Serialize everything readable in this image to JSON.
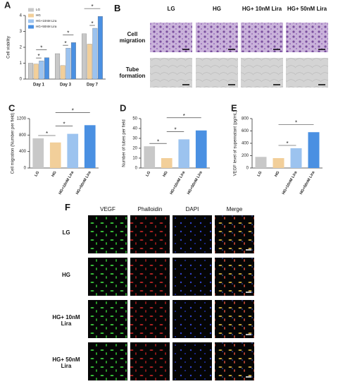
{
  "chart_data": [
    {
      "type": "bar",
      "panel": "A",
      "ylabel": "Cell viability",
      "categories": [
        "Day 1",
        "Day 3",
        "Day 7"
      ],
      "series": [
        {
          "name": "LG",
          "color": "#c8c8c8",
          "values": [
            1.0,
            1.6,
            2.85
          ]
        },
        {
          "name": "HG",
          "color": "#f2cf9a",
          "values": [
            0.95,
            0.85,
            2.2
          ]
        },
        {
          "name": "HG+10nM Lira",
          "color": "#9cc3ef",
          "values": [
            1.15,
            1.95,
            3.2
          ]
        },
        {
          "name": "HG+50nM Lira",
          "color": "#4a90e2",
          "values": [
            1.35,
            2.3,
            3.95
          ]
        }
      ],
      "ylim": [
        0,
        4
      ],
      "yticks": [
        0,
        1,
        2,
        3,
        4
      ],
      "legend": "upper left",
      "annotations": [
        "*",
        "*",
        "*",
        "*",
        "*",
        "*"
      ]
    },
    {
      "type": "bar",
      "panel": "C",
      "ylabel": "Cell migration (Number per field)",
      "categories": [
        "LG",
        "HG",
        "HG+10nM Lira",
        "HG+50nM Lira"
      ],
      "values": [
        720,
        620,
        830,
        1040
      ],
      "colors": [
        "#c8c8c8",
        "#f2cf9a",
        "#9cc3ef",
        "#4a90e2"
      ],
      "ylim": [
        0,
        1200
      ],
      "yticks": [
        0,
        400,
        800,
        1200
      ],
      "annotations": [
        "*",
        "*",
        "*"
      ]
    },
    {
      "type": "bar",
      "panel": "D",
      "ylabel": "Number of tubes per field",
      "categories": [
        "LG",
        "HG",
        "HG+10nM Lira",
        "HG+50nM Lira"
      ],
      "values": [
        22,
        10,
        29,
        38
      ],
      "colors": [
        "#c8c8c8",
        "#f2cf9a",
        "#9cc3ef",
        "#4a90e2"
      ],
      "ylim": [
        0,
        50
      ],
      "yticks": [
        0,
        10,
        20,
        30,
        40,
        50
      ],
      "annotations": [
        "*",
        "*",
        "*"
      ]
    },
    {
      "type": "bar",
      "panel": "E",
      "ylabel": "VEGF level of supernatant (pg/mL)",
      "categories": [
        "LG",
        "HG",
        "HG+10nM Lira",
        "HG+50nM Lira"
      ],
      "values": [
        180,
        160,
        320,
        580
      ],
      "colors": [
        "#c8c8c8",
        "#f2cf9a",
        "#9cc3ef",
        "#4a90e2"
      ],
      "ylim": [
        0,
        800
      ],
      "yticks": [
        0,
        200,
        400,
        600,
        800
      ],
      "annotations": [
        "*",
        "*"
      ]
    }
  ],
  "panel_b": {
    "label": "B",
    "columns": [
      "LG",
      "HG",
      "HG+ 10nM Lira",
      "HG+ 50nM Lira"
    ],
    "rows": [
      "Cell migration",
      "Tube formation"
    ]
  },
  "panel_f": {
    "label": "F",
    "columns": [
      "VEGF",
      "Phalloidin",
      "DAPI",
      "Merge"
    ],
    "rows": [
      "LG",
      "HG",
      "HG+ 10nM Lira",
      "HG+ 50nM Lira"
    ]
  }
}
